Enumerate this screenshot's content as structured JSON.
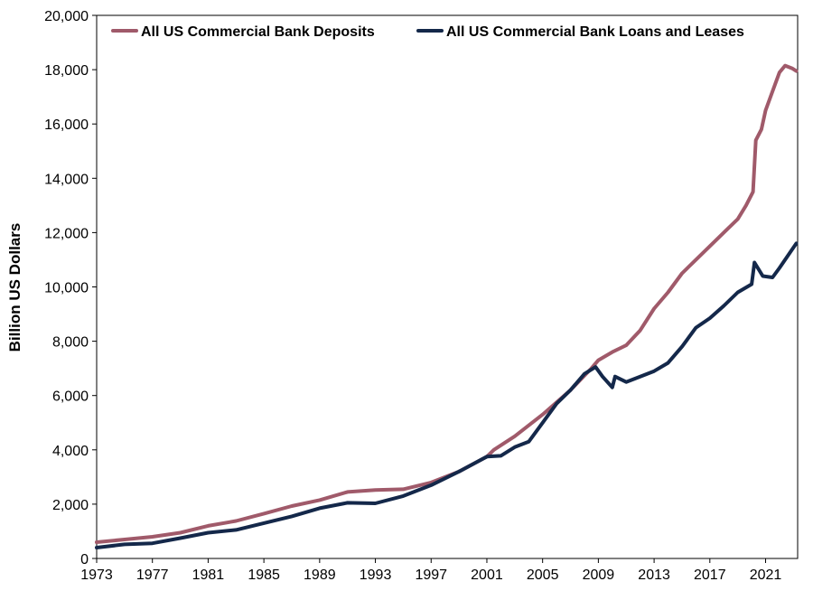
{
  "chart_data": {
    "type": "line",
    "title": "",
    "xlabel": "",
    "ylabel": "Billion US Dollars",
    "xlim": [
      1973,
      2023.3
    ],
    "ylim": [
      0,
      20000
    ],
    "x_ticks": [
      1973,
      1977,
      1981,
      1985,
      1989,
      1993,
      1997,
      2001,
      2005,
      2009,
      2013,
      2017,
      2021
    ],
    "x_tick_labels": [
      "1973",
      "1977",
      "1981",
      "1985",
      "1989",
      "1993",
      "1997",
      "2001",
      "2005",
      "2009",
      "2013",
      "2017",
      "2021"
    ],
    "y_ticks": [
      0,
      2000,
      4000,
      6000,
      8000,
      10000,
      12000,
      14000,
      16000,
      18000,
      20000
    ],
    "y_tick_labels": [
      "0",
      "2,000",
      "4,000",
      "6,000",
      "8,000",
      "10,000",
      "12,000",
      "14,000",
      "16,000",
      "18,000",
      "20,000"
    ],
    "grid": false,
    "legend_position": "top",
    "series": [
      {
        "name": "All US Commercial Bank Deposits",
        "color": "#a05a6a",
        "points": [
          [
            1973,
            600
          ],
          [
            1975,
            700
          ],
          [
            1977,
            800
          ],
          [
            1979,
            950
          ],
          [
            1981,
            1200
          ],
          [
            1983,
            1380
          ],
          [
            1985,
            1650
          ],
          [
            1987,
            1930
          ],
          [
            1989,
            2150
          ],
          [
            1991,
            2450
          ],
          [
            1993,
            2520
          ],
          [
            1995,
            2550
          ],
          [
            1997,
            2800
          ],
          [
            1999,
            3200
          ],
          [
            2001,
            3750
          ],
          [
            2001.5,
            4000
          ],
          [
            2003,
            4500
          ],
          [
            2005,
            5300
          ],
          [
            2007,
            6200
          ],
          [
            2008.5,
            7000
          ],
          [
            2009,
            7300
          ],
          [
            2010,
            7600
          ],
          [
            2011,
            7850
          ],
          [
            2012,
            8400
          ],
          [
            2013,
            9200
          ],
          [
            2014,
            9800
          ],
          [
            2015,
            10500
          ],
          [
            2016,
            11000
          ],
          [
            2017,
            11500
          ],
          [
            2018,
            12000
          ],
          [
            2019,
            12500
          ],
          [
            2019.6,
            13000
          ],
          [
            2020.1,
            13500
          ],
          [
            2020.3,
            15400
          ],
          [
            2020.7,
            15800
          ],
          [
            2021,
            16500
          ],
          [
            2021.5,
            17200
          ],
          [
            2022,
            17900
          ],
          [
            2022.4,
            18150
          ],
          [
            2022.9,
            18050
          ],
          [
            2023.2,
            17950
          ]
        ]
      },
      {
        "name": "All US Commercial Bank Loans and Leases",
        "color": "#14284a",
        "points": [
          [
            1973,
            400
          ],
          [
            1975,
            520
          ],
          [
            1977,
            560
          ],
          [
            1979,
            750
          ],
          [
            1981,
            950
          ],
          [
            1983,
            1050
          ],
          [
            1985,
            1300
          ],
          [
            1987,
            1550
          ],
          [
            1989,
            1850
          ],
          [
            1991,
            2050
          ],
          [
            1993,
            2030
          ],
          [
            1995,
            2300
          ],
          [
            1997,
            2700
          ],
          [
            1999,
            3200
          ],
          [
            2001,
            3750
          ],
          [
            2002,
            3780
          ],
          [
            2003,
            4100
          ],
          [
            2004,
            4300
          ],
          [
            2005,
            5000
          ],
          [
            2006,
            5700
          ],
          [
            2007,
            6200
          ],
          [
            2008,
            6800
          ],
          [
            2008.8,
            7050
          ],
          [
            2009.3,
            6700
          ],
          [
            2010,
            6300
          ],
          [
            2010.2,
            6700
          ],
          [
            2011,
            6500
          ],
          [
            2012,
            6700
          ],
          [
            2013,
            6900
          ],
          [
            2014,
            7200
          ],
          [
            2015,
            7800
          ],
          [
            2016,
            8500
          ],
          [
            2017,
            8850
          ],
          [
            2018,
            9300
          ],
          [
            2019,
            9800
          ],
          [
            2020,
            10100
          ],
          [
            2020.2,
            10900
          ],
          [
            2020.8,
            10400
          ],
          [
            2021.5,
            10350
          ],
          [
            2022,
            10700
          ],
          [
            2022.8,
            11300
          ],
          [
            2023.2,
            11600
          ]
        ]
      }
    ]
  }
}
